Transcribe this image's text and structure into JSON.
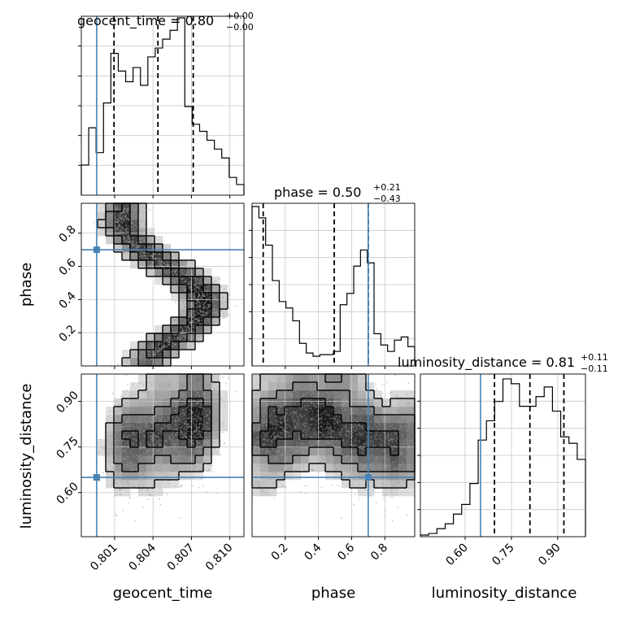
{
  "chart_data": {
    "type": "corner",
    "params": [
      "geocent_time",
      "phase",
      "luminosity_distance"
    ],
    "titles": [
      {
        "param": "geocent_time",
        "text": "geocent_time = 0.80",
        "sup": "+0.00",
        "sub": "−0.00"
      },
      {
        "param": "phase",
        "text": "phase = 0.50",
        "sup": "+0.21",
        "sub": "−0.43"
      },
      {
        "param": "luminosity_distance",
        "text": "luminosity_distance = 0.81",
        "sup": "+0.11",
        "sub": "−0.11"
      }
    ],
    "axis_labels": {
      "x": [
        "geocent_time",
        "phase",
        "luminosity_distance"
      ],
      "y": [
        "phase",
        "luminosity_distance"
      ]
    },
    "ranges": {
      "geocent_time": [
        0.7984,
        0.8111
      ],
      "phase": [
        0.0,
        0.98
      ],
      "luminosity_distance": [
        0.455,
        0.99
      ]
    },
    "ticks": {
      "geocent_time": {
        "values": [
          0.801,
          0.804,
          0.807,
          0.81
        ],
        "labels": [
          "0.801",
          "0.804",
          "0.807",
          "0.810"
        ]
      },
      "phase": {
        "values": [
          0.2,
          0.4,
          0.6,
          0.8
        ],
        "labels": [
          "0.2",
          "0.4",
          "0.6",
          "0.8"
        ]
      },
      "luminosity_distance": {
        "values": [
          0.6,
          0.75,
          0.9
        ],
        "labels": [
          "0.60",
          "0.75",
          "0.90"
        ]
      }
    },
    "truths": {
      "geocent_time": 0.7996,
      "phase": 0.7,
      "luminosity_distance": 0.65
    },
    "quantiles": {
      "geocent_time": [
        0.80095,
        0.80438,
        0.80714
      ],
      "phase": [
        0.067,
        0.495,
        0.7
      ],
      "luminosity_distance": [
        0.695,
        0.81,
        0.92
      ]
    },
    "histograms": {
      "geocent_time": [
        0.17,
        0.38,
        0.24,
        0.52,
        0.8,
        0.7,
        0.64,
        0.72,
        0.62,
        0.78,
        0.83,
        0.88,
        0.93,
        1.0,
        0.5,
        0.4,
        0.36,
        0.31,
        0.26,
        0.21,
        0.1,
        0.06
      ],
      "phase": [
        0.99,
        0.92,
        0.75,
        0.53,
        0.4,
        0.36,
        0.28,
        0.14,
        0.08,
        0.06,
        0.07,
        0.07,
        0.09,
        0.38,
        0.45,
        0.62,
        0.72,
        0.64,
        0.2,
        0.13,
        0.09,
        0.16,
        0.18,
        0.12
      ],
      "luminosity_distance": [
        0.01,
        0.02,
        0.05,
        0.08,
        0.14,
        0.2,
        0.33,
        0.6,
        0.72,
        0.84,
        0.98,
        0.95,
        0.81,
        0.81,
        0.87,
        0.93,
        0.78,
        0.62,
        0.58,
        0.48
      ]
    },
    "grid": true
  }
}
